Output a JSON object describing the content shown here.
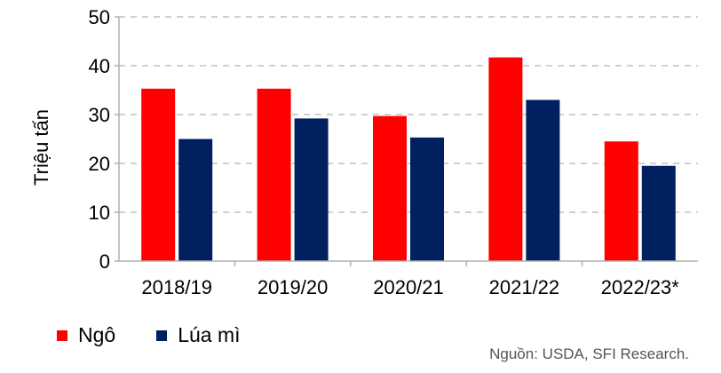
{
  "chart_data": {
    "type": "bar",
    "categories": [
      "2018/19",
      "2019/20",
      "2020/21",
      "2021/22",
      "2022/23*"
    ],
    "series": [
      {
        "name": "Ngô",
        "color": "#ff0000",
        "values": [
          35.3,
          35.3,
          29.7,
          41.7,
          24.5
        ]
      },
      {
        "name": "Lúa mì",
        "color": "#002060",
        "values": [
          25.0,
          29.2,
          25.3,
          33.0,
          19.5
        ]
      }
    ],
    "ylabel": "Triệu tấn",
    "ylim": [
      0,
      50
    ],
    "yticks": [
      0,
      10,
      20,
      30,
      40,
      50
    ],
    "grid": true,
    "legend_position": "bottom-left"
  },
  "source": "Nguồn: USDA, SFI Research."
}
